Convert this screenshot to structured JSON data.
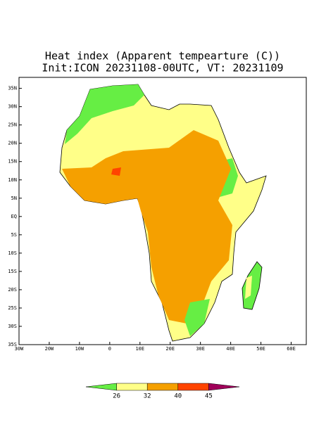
{
  "title": [
    "Heat index (Apparent tempearture (C))",
    "Init:ICON 20231108-00UTC, VT: 20231109"
  ],
  "map": {
    "xlim": [
      -30,
      65
    ],
    "ylim": [
      -35,
      38
    ],
    "xticks": [
      {
        "value": -30,
        "label": "30W"
      },
      {
        "value": -20,
        "label": "20W"
      },
      {
        "value": -10,
        "label": "10W"
      },
      0,
      {
        "value": 10,
        "label": "10E"
      },
      {
        "value": 20,
        "label": "20E"
      },
      {
        "value": 30,
        "label": "30E"
      },
      {
        "value": 40,
        "label": "40E"
      },
      {
        "value": 50,
        "label": "50E"
      },
      {
        "value": 60,
        "label": "60E"
      }
    ],
    "yticks": [
      {
        "value": 35,
        "label": "35N"
      },
      {
        "value": 30,
        "label": "30N"
      },
      {
        "value": 25,
        "label": "25N"
      },
      {
        "value": 20,
        "label": "20N"
      },
      {
        "value": 15,
        "label": "15N"
      },
      {
        "value": 10,
        "label": "10N"
      },
      {
        "value": 5,
        "label": "5N"
      },
      {
        "value": 0,
        "label": "EQ"
      },
      {
        "value": -5,
        "label": "5S"
      },
      {
        "value": -10,
        "label": "10S"
      },
      {
        "value": -15,
        "label": "15S"
      },
      {
        "value": -20,
        "label": "20S"
      },
      {
        "value": -25,
        "label": "25S"
      },
      {
        "value": -30,
        "label": "30S"
      },
      {
        "value": -35,
        "label": "35S"
      }
    ]
  },
  "colorbar": {
    "levels": [
      26,
      32,
      40,
      45
    ],
    "colors": [
      "#66ee44",
      "#ffff88",
      "#f5a000",
      "#ff4400",
      "#a0005a"
    ]
  }
}
